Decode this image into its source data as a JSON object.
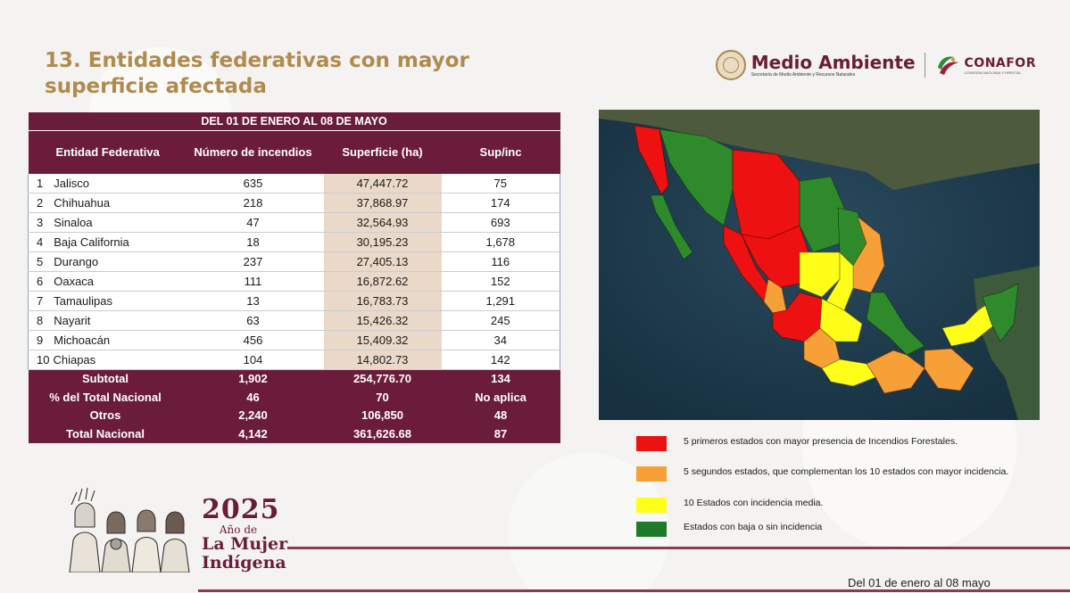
{
  "title": {
    "line1": "13. Entidades federativas con mayor",
    "line2": "superficie afectada"
  },
  "logos": {
    "medio_ambiente": "Medio Ambiente",
    "medio_ambiente_sub": "Secretaría de Medio Ambiente y Recursos Naturales",
    "conafor": "CONAFOR",
    "conafor_sub": "COMISIÓN NACIONAL FORESTAL"
  },
  "table": {
    "period": "DEL 01 DE ENERO AL 08 DE MAYO",
    "headers": {
      "entidad": "Entidad Federativa",
      "incendios": "Número de incendios",
      "superficie": "Superficie (ha)",
      "supinc": "Sup/inc"
    },
    "rows": [
      {
        "n": "1",
        "name": "Jalisco",
        "inc": "635",
        "sup": "47,447.72",
        "si": "75"
      },
      {
        "n": "2",
        "name": "Chihuahua",
        "inc": "218",
        "sup": "37,868.97",
        "si": "174"
      },
      {
        "n": "3",
        "name": "Sinaloa",
        "inc": "47",
        "sup": "32,564.93",
        "si": "693"
      },
      {
        "n": "4",
        "name": "Baja California",
        "inc": "18",
        "sup": "30,195.23",
        "si": "1,678"
      },
      {
        "n": "5",
        "name": "Durango",
        "inc": "237",
        "sup": "27,405.13",
        "si": "116"
      },
      {
        "n": "6",
        "name": "Oaxaca",
        "inc": "111",
        "sup": "16,872.62",
        "si": "152"
      },
      {
        "n": "7",
        "name": "Tamaulipas",
        "inc": "13",
        "sup": "16,783.73",
        "si": "1,291"
      },
      {
        "n": "8",
        "name": "Nayarit",
        "inc": "63",
        "sup": "15,426.32",
        "si": "245"
      },
      {
        "n": "9",
        "name": "Michoacán",
        "inc": "456",
        "sup": "15,409.32",
        "si": "34"
      },
      {
        "n": "10",
        "name": "Chiapas",
        "inc": "104",
        "sup": "14,802.73",
        "si": "142"
      }
    ],
    "totals": [
      {
        "label": "Subtotal",
        "inc": "1,902",
        "sup": "254,776.70",
        "si": "134"
      },
      {
        "label": "% del Total Nacional",
        "inc": "46",
        "sup": "70",
        "si": "No aplica"
      },
      {
        "label": "Otros",
        "inc": "2,240",
        "sup": "106,850",
        "si": "48"
      },
      {
        "label": "Total Nacional",
        "inc": "4,142",
        "sup": "361,626.68",
        "si": "87"
      }
    ]
  },
  "legend": [
    {
      "color": "#ee1111",
      "text": "5 primeros estados con mayor presencia de Incendios Forestales."
    },
    {
      "color": "#f7a038",
      "text": "5 segundos estados, que complementan los 10 estados con mayor incidencia."
    },
    {
      "color": "#ffff1a",
      "text": "10 Estados con incidencia media."
    },
    {
      "color": "#1f7a2a",
      "text": "Estados con baja o sin incidencia"
    }
  ],
  "colors": {
    "maroon": "#6b1c3b",
    "gold": "#b08a4e",
    "red": "#ee1111",
    "orange": "#f7a038",
    "yellow": "#ffff1a",
    "green": "#1f7a2a"
  },
  "footer": {
    "year": "2025",
    "ano_de": "Año de",
    "la_mujer": "La Mujer",
    "indigena": "Indígena",
    "date": "Del 01 de enero al 08 mayo"
  }
}
